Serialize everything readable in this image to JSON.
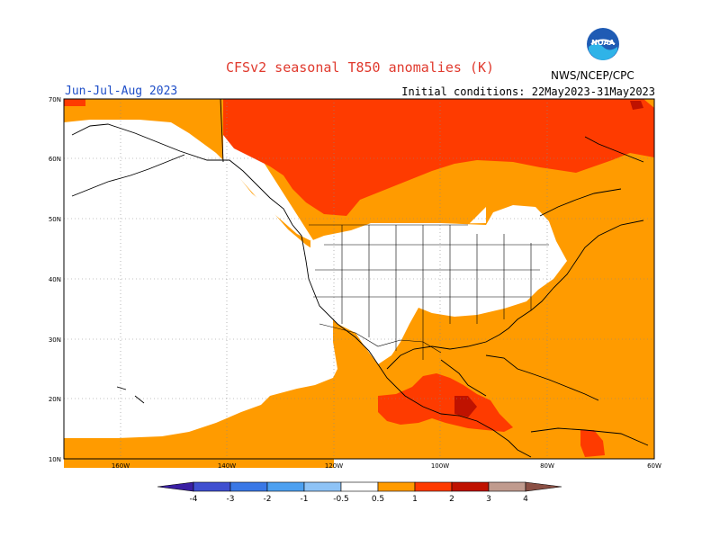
{
  "title": "CFSv2 seasonal T850 anomalies (K)",
  "period": "Jun-Jul-Aug 2023",
  "initial_conditions": "Initial conditions: 22May2023-31May2023",
  "org": "NWS/NCEP/CPC",
  "logo_text": "NOAA",
  "map": {
    "lat_labels": [
      "70N",
      "60N",
      "50N",
      "40N",
      "30N",
      "20N",
      "10N"
    ],
    "lon_labels": [
      "160W",
      "140W",
      "120W",
      "100W",
      "80W",
      "60W"
    ]
  },
  "colorbar": {
    "labels": [
      "-4",
      "-3",
      "-2",
      "-1",
      "-0.5",
      "0.5",
      "1",
      "2",
      "3",
      "4"
    ],
    "colors": [
      "#3a1fa3",
      "#3f4fd0",
      "#3a78e6",
      "#4da0f0",
      "#8ec3f6",
      "#ffffff",
      "#ff9b00",
      "#fe3b00",
      "#bf1200",
      "#c09b8e",
      "#8a4f44"
    ]
  },
  "legend_colors": {
    "neutral": "#ffffff",
    "c05_1": "#ff9b00",
    "c1_2": "#fe3b00",
    "c2_3": "#bf1200"
  }
}
